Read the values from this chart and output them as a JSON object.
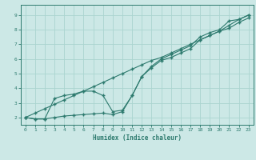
{
  "xlabel": "Humidex (Indice chaleur)",
  "bg_color": "#cce8e6",
  "grid_color": "#aad4d0",
  "line_color": "#2d7a6e",
  "xlim": [
    -0.5,
    23.5
  ],
  "ylim": [
    1.5,
    9.7
  ],
  "xticks": [
    0,
    1,
    2,
    3,
    4,
    5,
    6,
    7,
    8,
    9,
    10,
    11,
    12,
    13,
    14,
    15,
    16,
    17,
    18,
    19,
    20,
    21,
    22,
    23
  ],
  "yticks": [
    2,
    3,
    4,
    5,
    6,
    7,
    8,
    9
  ],
  "line1_x": [
    0,
    1,
    2,
    3,
    4,
    5,
    6,
    7,
    8,
    9,
    10,
    11,
    12,
    13,
    14,
    15,
    16,
    17,
    18,
    19,
    20,
    21,
    22,
    23
  ],
  "line1_y": [
    2.0,
    2.3,
    2.6,
    2.9,
    3.2,
    3.5,
    3.8,
    4.1,
    4.4,
    4.7,
    5.0,
    5.3,
    5.6,
    5.9,
    6.1,
    6.4,
    6.7,
    7.0,
    7.3,
    7.6,
    7.9,
    8.3,
    8.7,
    9.0
  ],
  "line2_x": [
    0,
    1,
    2,
    3,
    4,
    5,
    6,
    7,
    8,
    9,
    10,
    11,
    12,
    13,
    14,
    15,
    16,
    17,
    18,
    19,
    20,
    21,
    22,
    23
  ],
  "line2_y": [
    2.0,
    1.9,
    1.9,
    3.3,
    3.5,
    3.6,
    3.8,
    3.8,
    3.5,
    2.4,
    2.5,
    3.5,
    4.8,
    5.5,
    6.0,
    6.3,
    6.6,
    6.9,
    7.5,
    7.8,
    8.0,
    8.6,
    8.7,
    9.0
  ],
  "line3_x": [
    0,
    1,
    2,
    3,
    4,
    5,
    6,
    7,
    8,
    9,
    10,
    11,
    12,
    13,
    14,
    15,
    16,
    17,
    18,
    19,
    20,
    21,
    22,
    23
  ],
  "line3_y": [
    2.0,
    1.9,
    1.9,
    2.0,
    2.1,
    2.15,
    2.2,
    2.25,
    2.3,
    2.2,
    2.4,
    3.5,
    4.8,
    5.4,
    5.9,
    6.1,
    6.4,
    6.7,
    7.3,
    7.6,
    7.9,
    8.1,
    8.5,
    8.8
  ]
}
